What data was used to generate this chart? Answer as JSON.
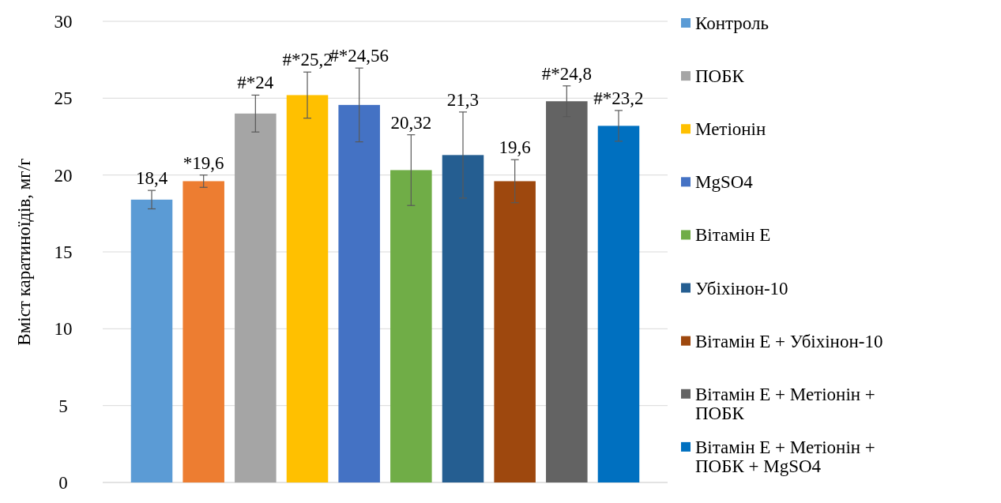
{
  "chart_data": {
    "type": "bar",
    "ylabel": "Вміст каратиноїдів, мг/г",
    "categories": [
      null
    ],
    "ylim": [
      0,
      30
    ],
    "yticks": [
      0,
      5,
      10,
      15,
      20,
      25,
      30
    ],
    "grid": "y",
    "legend": "right",
    "series": [
      {
        "name": "Контроль",
        "color": "#5b9bd5",
        "values": [
          18.4
        ],
        "errors": [
          0.6
        ],
        "value_labels": [
          "18,4"
        ]
      },
      {
        "color": "#ed7d31",
        "values": [
          19.6
        ],
        "errors": [
          0.4
        ],
        "value_labels": [
          "*19,6"
        ]
      },
      {
        "name": "ПОБК",
        "color": "#a5a5a5",
        "values": [
          24
        ],
        "errors": [
          1.2
        ],
        "value_labels": [
          "#*24"
        ]
      },
      {
        "name": "Метіонін",
        "color": "#ffc000",
        "values": [
          25.2
        ],
        "errors": [
          1.5
        ],
        "value_labels": [
          "#*25,2"
        ]
      },
      {
        "name": "MgSO4",
        "color": "#4472c4",
        "values": [
          24.56
        ],
        "errors": [
          2.4
        ],
        "value_labels": [
          "#*24,56"
        ]
      },
      {
        "name": "Вітамін Е",
        "color": "#70ad47",
        "values": [
          20.32
        ],
        "errors": [
          2.3
        ],
        "value_labels": [
          "20,32"
        ]
      },
      {
        "name": "Убіхінон-10",
        "color": "#255e91",
        "values": [
          21.3
        ],
        "errors": [
          2.8
        ],
        "value_labels": [
          "21,3"
        ]
      },
      {
        "name": "Вітамін Е + Убіхінон-10",
        "color": "#9e480e",
        "values": [
          19.6
        ],
        "errors": [
          1.4
        ],
        "value_labels": [
          "19,6"
        ]
      },
      {
        "name": "Вітамін Е + Метіонін + ПОБК",
        "color": "#636363",
        "values": [
          24.8
        ],
        "errors": [
          1.0
        ],
        "value_labels": [
          "#*24,8"
        ]
      },
      {
        "name": "Вітамін Е + Метіонін + ПОБК + MgSO4",
        "color": "#0070c0",
        "values": [
          23.2
        ],
        "errors": [
          1.0
        ],
        "value_labels": [
          "#*23,2"
        ]
      }
    ]
  }
}
